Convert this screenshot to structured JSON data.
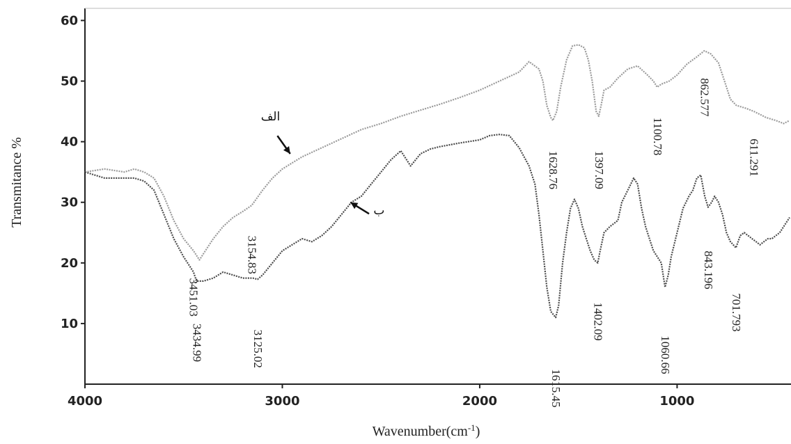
{
  "chart_data": {
    "type": "line",
    "xlabel": "Wavenumber(cm",
    "xlabel_sup": "-1",
    "xlabel_tail": ")",
    "ylabel": "Transmitance %",
    "xlim": [
      4000,
      430
    ],
    "ylim": [
      0,
      62
    ],
    "x_ticks": [
      4000,
      3000,
      2000,
      1000
    ],
    "y_ticks": [
      10,
      20,
      30,
      40,
      50,
      60
    ],
    "grid": false,
    "series": [
      {
        "name": "الف",
        "color": "#9a9a9a",
        "points": [
          [
            4000,
            35
          ],
          [
            3900,
            35.5
          ],
          [
            3800,
            35
          ],
          [
            3750,
            35.5
          ],
          [
            3700,
            35
          ],
          [
            3650,
            34
          ],
          [
            3600,
            31
          ],
          [
            3550,
            27
          ],
          [
            3500,
            24
          ],
          [
            3450,
            22
          ],
          [
            3420,
            20.5
          ],
          [
            3400,
            21.5
          ],
          [
            3350,
            24
          ],
          [
            3300,
            26
          ],
          [
            3250,
            27.5
          ],
          [
            3200,
            28.5
          ],
          [
            3155,
            29.5
          ],
          [
            3100,
            32
          ],
          [
            3050,
            34
          ],
          [
            3000,
            35.5
          ],
          [
            2950,
            36.5
          ],
          [
            2900,
            37.5
          ],
          [
            2800,
            39
          ],
          [
            2700,
            40.5
          ],
          [
            2600,
            42
          ],
          [
            2500,
            43
          ],
          [
            2400,
            44.2
          ],
          [
            2300,
            45.2
          ],
          [
            2200,
            46.2
          ],
          [
            2100,
            47.3
          ],
          [
            2000,
            48.5
          ],
          [
            1900,
            50
          ],
          [
            1800,
            51.5
          ],
          [
            1750,
            53.2
          ],
          [
            1700,
            52
          ],
          [
            1680,
            50
          ],
          [
            1660,
            46
          ],
          [
            1640,
            44
          ],
          [
            1629,
            43.5
          ],
          [
            1610,
            45
          ],
          [
            1590,
            49
          ],
          [
            1560,
            53.5
          ],
          [
            1530,
            55.8
          ],
          [
            1500,
            56
          ],
          [
            1470,
            55.5
          ],
          [
            1450,
            53.5
          ],
          [
            1430,
            50
          ],
          [
            1410,
            45
          ],
          [
            1397,
            44.2
          ],
          [
            1385,
            46
          ],
          [
            1370,
            48.5
          ],
          [
            1340,
            49
          ],
          [
            1300,
            50.5
          ],
          [
            1250,
            52
          ],
          [
            1200,
            52.5
          ],
          [
            1150,
            51
          ],
          [
            1120,
            50
          ],
          [
            1101,
            49
          ],
          [
            1080,
            49.5
          ],
          [
            1040,
            50
          ],
          [
            1000,
            51
          ],
          [
            950,
            52.8
          ],
          [
            900,
            54
          ],
          [
            862,
            55
          ],
          [
            830,
            54.5
          ],
          [
            790,
            53
          ],
          [
            760,
            50
          ],
          [
            730,
            47
          ],
          [
            700,
            46
          ],
          [
            650,
            45.5
          ],
          [
            611,
            45
          ],
          [
            580,
            44.5
          ],
          [
            550,
            44
          ],
          [
            500,
            43.5
          ],
          [
            460,
            43
          ],
          [
            430,
            43.5
          ]
        ]
      },
      {
        "name": "ب",
        "color": "#4a4a4a",
        "points": [
          [
            4000,
            35
          ],
          [
            3900,
            34
          ],
          [
            3800,
            34
          ],
          [
            3750,
            34
          ],
          [
            3700,
            33.5
          ],
          [
            3650,
            32
          ],
          [
            3600,
            28
          ],
          [
            3550,
            24
          ],
          [
            3500,
            21
          ],
          [
            3450,
            18.5
          ],
          [
            3435,
            17
          ],
          [
            3400,
            17
          ],
          [
            3350,
            17.5
          ],
          [
            3300,
            18.5
          ],
          [
            3250,
            18
          ],
          [
            3200,
            17.5
          ],
          [
            3150,
            17.5
          ],
          [
            3125,
            17.3
          ],
          [
            3100,
            18
          ],
          [
            3050,
            20
          ],
          [
            3000,
            22
          ],
          [
            2950,
            23
          ],
          [
            2900,
            24
          ],
          [
            2850,
            23.5
          ],
          [
            2800,
            24.5
          ],
          [
            2750,
            26
          ],
          [
            2700,
            28
          ],
          [
            2650,
            30
          ],
          [
            2600,
            31
          ],
          [
            2550,
            33
          ],
          [
            2500,
            35
          ],
          [
            2450,
            37
          ],
          [
            2400,
            38.5
          ],
          [
            2350,
            36
          ],
          [
            2300,
            38
          ],
          [
            2250,
            38.8
          ],
          [
            2200,
            39.2
          ],
          [
            2100,
            39.8
          ],
          [
            2000,
            40.3
          ],
          [
            1950,
            41
          ],
          [
            1900,
            41.2
          ],
          [
            1850,
            41
          ],
          [
            1800,
            39
          ],
          [
            1750,
            36
          ],
          [
            1720,
            33
          ],
          [
            1700,
            28
          ],
          [
            1680,
            22
          ],
          [
            1660,
            16
          ],
          [
            1640,
            12
          ],
          [
            1615,
            11
          ],
          [
            1600,
            13
          ],
          [
            1580,
            20
          ],
          [
            1560,
            25
          ],
          [
            1540,
            29
          ],
          [
            1520,
            30.5
          ],
          [
            1500,
            29
          ],
          [
            1480,
            26
          ],
          [
            1460,
            24
          ],
          [
            1440,
            22
          ],
          [
            1420,
            20.5
          ],
          [
            1402,
            20
          ],
          [
            1390,
            22
          ],
          [
            1370,
            25
          ],
          [
            1340,
            26
          ],
          [
            1300,
            27
          ],
          [
            1280,
            30
          ],
          [
            1250,
            32
          ],
          [
            1220,
            34
          ],
          [
            1200,
            33
          ],
          [
            1180,
            29
          ],
          [
            1160,
            26
          ],
          [
            1140,
            24
          ],
          [
            1120,
            22
          ],
          [
            1100,
            21
          ],
          [
            1080,
            20
          ],
          [
            1061,
            16
          ],
          [
            1045,
            18
          ],
          [
            1030,
            21
          ],
          [
            1000,
            25
          ],
          [
            970,
            29
          ],
          [
            940,
            31
          ],
          [
            920,
            32
          ],
          [
            900,
            34
          ],
          [
            880,
            34.5
          ],
          [
            860,
            31
          ],
          [
            843,
            29.2
          ],
          [
            825,
            30
          ],
          [
            810,
            31
          ],
          [
            790,
            30
          ],
          [
            770,
            28
          ],
          [
            750,
            25
          ],
          [
            730,
            23.5
          ],
          [
            702,
            22.5
          ],
          [
            680,
            24.5
          ],
          [
            660,
            25
          ],
          [
            640,
            24.5
          ],
          [
            620,
            24
          ],
          [
            600,
            23.5
          ],
          [
            580,
            23
          ],
          [
            560,
            23.5
          ],
          [
            540,
            24
          ],
          [
            520,
            24
          ],
          [
            500,
            24.5
          ],
          [
            480,
            25
          ],
          [
            460,
            26
          ],
          [
            440,
            27
          ],
          [
            430,
            27.5
          ]
        ]
      }
    ],
    "peak_labels": [
      {
        "text": "1628.76",
        "x": 1629,
        "y": 38.5
      },
      {
        "text": "1397.09",
        "x": 1397,
        "y": 38.5
      },
      {
        "text": "1100.78",
        "x": 1101,
        "y": 44
      },
      {
        "text": "862.577",
        "x": 862,
        "y": 50.5
      },
      {
        "text": "611.291",
        "x": 611,
        "y": 40.5
      },
      {
        "text": "3154.83",
        "x": 3155,
        "y": 24.5
      },
      {
        "text": "1615.45",
        "x": 1615,
        "y": 2.5
      },
      {
        "text": "1402.09",
        "x": 1402,
        "y": 13.5
      },
      {
        "text": "1060.66",
        "x": 1061,
        "y": 8
      },
      {
        "text": "843.196",
        "x": 843,
        "y": 22
      },
      {
        "text": "701.793",
        "x": 702,
        "y": 15
      },
      {
        "text": "3125.02",
        "x": 3125,
        "y": 9
      },
      {
        "text": "3451.03",
        "x": 3451,
        "y": 17.5,
        "small": true,
        "color": "#2b4a2b"
      },
      {
        "text": "3434.99",
        "x": 3434,
        "y": 10,
        "small": true,
        "color": "#2b4a2b"
      }
    ],
    "annotations": [
      {
        "text": "الف",
        "x": 3060,
        "y": 43.5,
        "arrow_to_x": 2960,
        "arrow_to_y": 38
      },
      {
        "text": "ب",
        "x": 2510,
        "y": 28,
        "arrow_to_x": 2655,
        "arrow_to_y": 30
      }
    ]
  }
}
